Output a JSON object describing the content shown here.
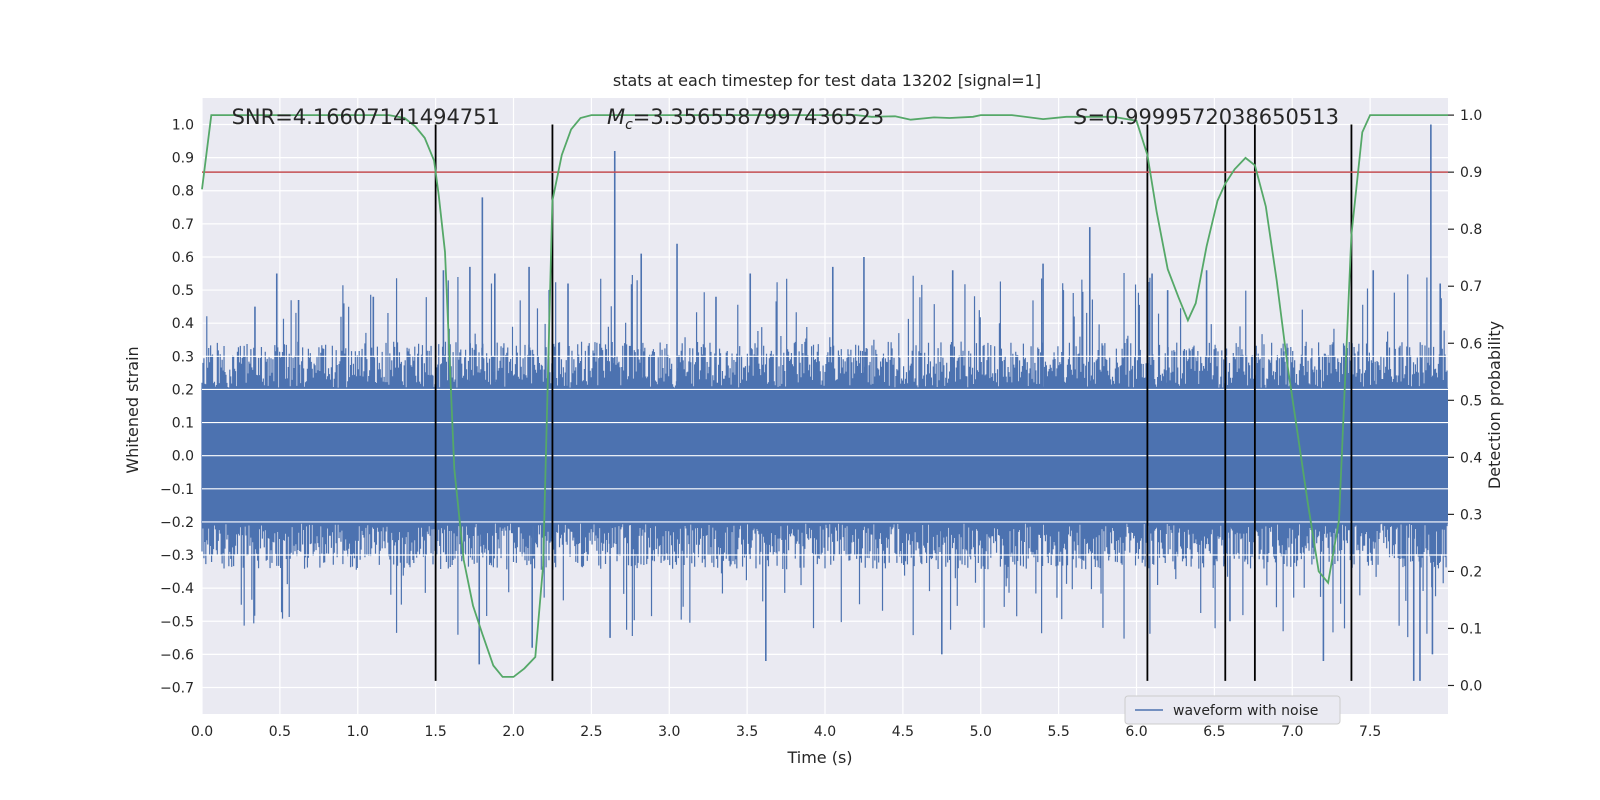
{
  "chart_data": {
    "type": "line",
    "title": "stats at each timestep for test data 13202 [signal=1]",
    "xlabel": "Time (s)",
    "ylabel_left": "Whitened strain",
    "ylabel_right": "Detection probability",
    "xlim": [
      0.0,
      8.0
    ],
    "ylim_left": [
      -0.78,
      1.08
    ],
    "ylim_right": [
      -0.05,
      1.03
    ],
    "x_ticks": [
      0.0,
      0.5,
      1.0,
      1.5,
      2.0,
      2.5,
      3.0,
      3.5,
      4.0,
      4.5,
      5.0,
      5.5,
      6.0,
      6.5,
      7.0,
      7.5
    ],
    "x_tick_labels": [
      "0.0",
      "0.5",
      "1.0",
      "1.5",
      "2.0",
      "2.5",
      "3.0",
      "3.5",
      "4.0",
      "4.5",
      "5.0",
      "5.5",
      "6.0",
      "6.5",
      "7.0",
      "7.5"
    ],
    "y_left_ticks": [
      1.0,
      0.9,
      0.8,
      0.7,
      0.6,
      0.5,
      0.4,
      0.3,
      0.2,
      0.1,
      0.0,
      -0.1,
      -0.2,
      -0.3,
      -0.4,
      -0.5,
      -0.6,
      -0.7
    ],
    "y_left_tick_labels": [
      "1.0",
      "0.9",
      "0.8",
      "0.7",
      "0.6",
      "0.5",
      "0.4",
      "0.3",
      "0.2",
      "0.1",
      "0.0",
      "−0.1",
      "−0.2",
      "−0.3",
      "−0.4",
      "−0.5",
      "−0.6",
      "−0.7"
    ],
    "y_right_ticks": [
      1.0,
      0.9,
      0.8,
      0.7,
      0.6,
      0.5,
      0.4,
      0.3,
      0.2,
      0.1,
      0.0
    ],
    "y_right_tick_labels": [
      "1.0",
      "0.9",
      "0.8",
      "0.7",
      "0.6",
      "0.5",
      "0.4",
      "0.3",
      "0.2",
      "0.1",
      "0.0"
    ],
    "grid": true,
    "annotations": {
      "snr": "SNR=4.16607141494751",
      "mc_symbol": "M",
      "mc_sub": "c",
      "mc_value": "=3.3565587997436523",
      "s_symbol": "S",
      "s_value": "=0.9999572038650513"
    },
    "annotation_x": {
      "snr": 0.19,
      "mc": 2.6,
      "s": 5.6
    },
    "threshold": {
      "value": 0.9,
      "axis": "right",
      "color": "#c44e52"
    },
    "event_lines": [
      1.5,
      2.25,
      6.07,
      6.57,
      6.76,
      7.38
    ],
    "event_line_range_left": [
      -0.68,
      1.0
    ],
    "series": [
      {
        "name": "waveform with noise",
        "axis": "left",
        "color": "#4c72b0",
        "envelope_abs": 0.25,
        "spikes": [
          [
            0.34,
            0.45
          ],
          [
            0.48,
            0.55
          ],
          [
            0.62,
            0.47
          ],
          [
            0.91,
            0.46
          ],
          [
            1.1,
            0.48
          ],
          [
            1.55,
            0.56
          ],
          [
            1.72,
            0.57
          ],
          [
            1.8,
            0.78
          ],
          [
            1.78,
            -0.63
          ],
          [
            1.88,
            0.55
          ],
          [
            2.1,
            0.57
          ],
          [
            2.12,
            -0.58
          ],
          [
            2.35,
            0.52
          ],
          [
            2.62,
            -0.55
          ],
          [
            2.65,
            0.92
          ],
          [
            2.82,
            0.61
          ],
          [
            3.05,
            0.64
          ],
          [
            3.3,
            0.48
          ],
          [
            3.52,
            0.55
          ],
          [
            3.62,
            -0.62
          ],
          [
            4.05,
            0.57
          ],
          [
            4.25,
            0.6
          ],
          [
            4.75,
            -0.6
          ],
          [
            4.82,
            0.56
          ],
          [
            5.4,
            0.58
          ],
          [
            5.53,
            0.5
          ],
          [
            5.7,
            0.69
          ],
          [
            6.1,
            0.55
          ],
          [
            6.2,
            0.5
          ],
          [
            6.45,
            0.56
          ],
          [
            6.6,
            -0.5
          ],
          [
            7.2,
            -0.62
          ],
          [
            7.52,
            0.56
          ],
          [
            7.78,
            -0.68
          ],
          [
            7.82,
            -0.68
          ],
          [
            7.89,
            1.0
          ],
          [
            7.9,
            -0.6
          ],
          [
            7.95,
            0.52
          ]
        ]
      },
      {
        "name": "",
        "axis": "right",
        "color": "#55a868",
        "x": [
          0.0,
          0.06,
          0.2,
          0.4,
          0.6,
          0.8,
          1.0,
          1.2,
          1.3,
          1.37,
          1.43,
          1.49,
          1.52,
          1.56,
          1.62,
          1.68,
          1.74,
          1.8,
          1.87,
          1.93,
          2.0,
          2.07,
          2.14,
          2.19,
          2.25,
          2.31,
          2.37,
          2.43,
          2.5,
          2.7,
          3.0,
          3.5,
          4.0,
          4.2,
          4.3,
          4.45,
          4.55,
          4.7,
          4.8,
          4.95,
          5.0,
          5.2,
          5.4,
          5.55,
          5.7,
          5.85,
          6.0,
          6.07,
          6.13,
          6.2,
          6.27,
          6.33,
          6.38,
          6.45,
          6.52,
          6.57,
          6.63,
          6.7,
          6.76,
          6.83,
          6.9,
          6.97,
          7.03,
          7.1,
          7.17,
          7.23,
          7.3,
          7.38,
          7.45,
          7.5,
          7.65,
          8.0
        ],
        "values": [
          0.87,
          1.0,
          1.0,
          1.0,
          1.0,
          1.0,
          1.0,
          1.0,
          0.995,
          0.98,
          0.96,
          0.92,
          0.86,
          0.76,
          0.38,
          0.22,
          0.14,
          0.09,
          0.035,
          0.015,
          0.015,
          0.03,
          0.05,
          0.21,
          0.85,
          0.93,
          0.975,
          0.995,
          1.0,
          1.0,
          1.0,
          1.0,
          1.0,
          1.0,
          0.997,
          0.998,
          0.992,
          0.996,
          0.995,
          0.997,
          1.0,
          1.0,
          0.993,
          0.997,
          0.997,
          0.997,
          0.99,
          0.93,
          0.83,
          0.73,
          0.68,
          0.64,
          0.67,
          0.77,
          0.85,
          0.88,
          0.905,
          0.925,
          0.912,
          0.84,
          0.71,
          0.56,
          0.45,
          0.32,
          0.2,
          0.18,
          0.29,
          0.79,
          0.97,
          1.0,
          1.0,
          1.0
        ]
      }
    ],
    "legend": {
      "position": "lower-right",
      "entries": [
        {
          "label": "waveform with noise",
          "color": "#4c72b0"
        }
      ]
    }
  }
}
